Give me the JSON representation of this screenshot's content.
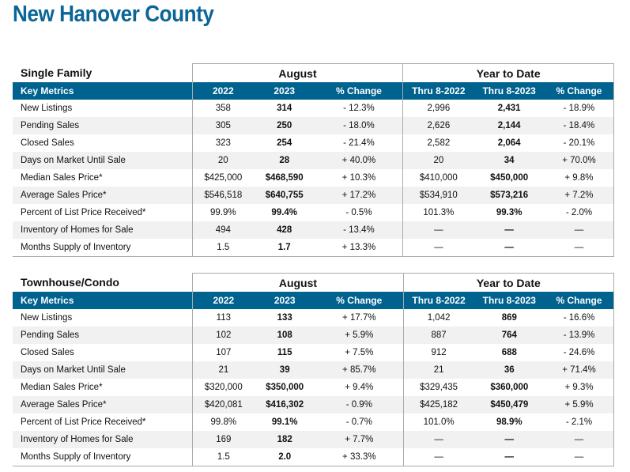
{
  "title": "New Hanover County",
  "sections": [
    {
      "name": "Single Family",
      "group1": "August",
      "group2": "Year to Date",
      "headers": [
        "Key Metrics",
        "2022",
        "2023",
        "% Change",
        "Thru 8-2022",
        "Thru 8-2023",
        "% Change"
      ],
      "rows": [
        [
          "New Listings",
          "358",
          "314",
          "- 12.3%",
          "2,996",
          "2,431",
          "- 18.9%"
        ],
        [
          "Pending Sales",
          "305",
          "250",
          "- 18.0%",
          "2,626",
          "2,144",
          "- 18.4%"
        ],
        [
          "Closed Sales",
          "323",
          "254",
          "- 21.4%",
          "2,582",
          "2,064",
          "- 20.1%"
        ],
        [
          "Days on Market Until Sale",
          "20",
          "28",
          "+ 40.0%",
          "20",
          "34",
          "+ 70.0%"
        ],
        [
          "Median Sales Price*",
          "$425,000",
          "$468,590",
          "+ 10.3%",
          "$410,000",
          "$450,000",
          "+ 9.8%"
        ],
        [
          "Average Sales Price*",
          "$546,518",
          "$640,755",
          "+ 17.2%",
          "$534,910",
          "$573,216",
          "+ 7.2%"
        ],
        [
          "Percent of List Price Received*",
          "99.9%",
          "99.4%",
          "- 0.5%",
          "101.3%",
          "99.3%",
          "- 2.0%"
        ],
        [
          "Inventory of Homes for Sale",
          "494",
          "428",
          "- 13.4%",
          "—",
          "—",
          "—"
        ],
        [
          "Months Supply of Inventory",
          "1.5",
          "1.7",
          "+ 13.3%",
          "—",
          "—",
          "—"
        ]
      ]
    },
    {
      "name": "Townhouse/Condo",
      "group1": "August",
      "group2": "Year to Date",
      "headers": [
        "Key Metrics",
        "2022",
        "2023",
        "% Change",
        "Thru 8-2022",
        "Thru 8-2023",
        "% Change"
      ],
      "rows": [
        [
          "New Listings",
          "113",
          "133",
          "+ 17.7%",
          "1,042",
          "869",
          "- 16.6%"
        ],
        [
          "Pending Sales",
          "102",
          "108",
          "+ 5.9%",
          "887",
          "764",
          "- 13.9%"
        ],
        [
          "Closed Sales",
          "107",
          "115",
          "+ 7.5%",
          "912",
          "688",
          "- 24.6%"
        ],
        [
          "Days on Market Until Sale",
          "21",
          "39",
          "+ 85.7%",
          "21",
          "36",
          "+ 71.4%"
        ],
        [
          "Median Sales Price*",
          "$320,000",
          "$350,000",
          "+ 9.4%",
          "$329,435",
          "$360,000",
          "+ 9.3%"
        ],
        [
          "Average Sales Price*",
          "$420,081",
          "$416,302",
          "- 0.9%",
          "$425,182",
          "$450,479",
          "+ 5.9%"
        ],
        [
          "Percent of List Price Received*",
          "99.8%",
          "99.1%",
          "- 0.7%",
          "101.0%",
          "98.9%",
          "- 2.1%"
        ],
        [
          "Inventory of Homes for Sale",
          "169",
          "182",
          "+ 7.7%",
          "—",
          "—",
          "—"
        ],
        [
          "Months Supply of Inventory",
          "1.5",
          "2.0",
          "+ 33.3%",
          "—",
          "—",
          "—"
        ]
      ]
    }
  ]
}
